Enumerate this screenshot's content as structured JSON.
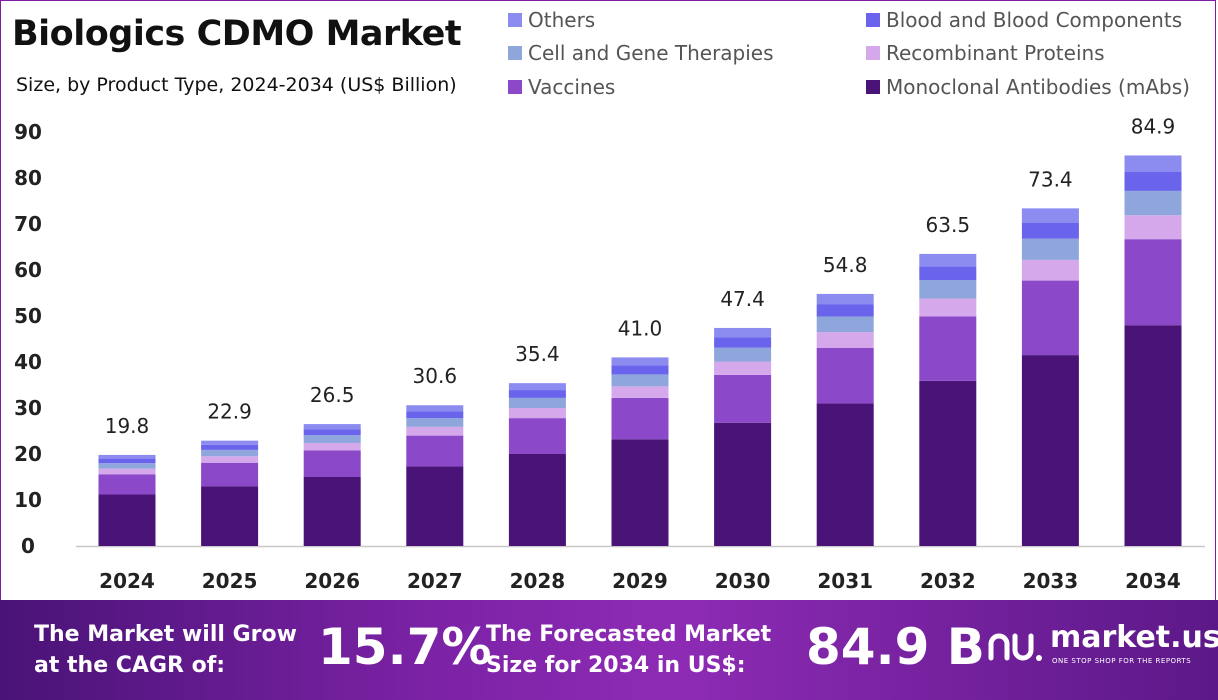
{
  "header": {
    "title": "Biologics CDMO Market",
    "subtitle": "Size, by Product Type, 2024-2034 (US$ Billion)"
  },
  "legend": [
    {
      "label": "Others",
      "color": "#8b8bf0"
    },
    {
      "label": "Blood and Blood Components",
      "color": "#6a63ec"
    },
    {
      "label": "Cell and Gene Therapies",
      "color": "#8fa6dc"
    },
    {
      "label": "Recombinant Proteins",
      "color": "#d5a8ec"
    },
    {
      "label": "Vaccines",
      "color": "#8b48c8"
    },
    {
      "label": "Monoclonal Antibodies (mAbs)",
      "color": "#4a1377"
    }
  ],
  "chart_data": {
    "type": "bar",
    "stacked": true,
    "title": "Biologics CDMO Market",
    "subtitle": "Size, by Product Type, 2024-2034 (US$ Billion)",
    "categories": [
      "2024",
      "2025",
      "2026",
      "2027",
      "2028",
      "2029",
      "2030",
      "2031",
      "2032",
      "2033",
      "2034"
    ],
    "totals": [
      "19.8",
      "22.9",
      "26.5",
      "30.6",
      "35.4",
      "41.0",
      "47.4",
      "54.8",
      "63.5",
      "73.4",
      "84.9"
    ],
    "ylim": [
      0,
      90
    ],
    "yticks": [
      0,
      10,
      20,
      30,
      40,
      50,
      60,
      70,
      80,
      90
    ],
    "grid": false,
    "legend_position": "top-right",
    "series": [
      {
        "name": "Monoclonal Antibodies (mAbs)",
        "color": "#4a1377",
        "values": [
          11.2,
          13.0,
          15.0,
          17.3,
          20.0,
          23.2,
          26.8,
          31.0,
          35.9,
          41.5,
          48.0
        ]
      },
      {
        "name": "Vaccines",
        "color": "#8b48c8",
        "values": [
          4.4,
          5.1,
          5.8,
          6.7,
          7.8,
          9.0,
          10.4,
          12.1,
          14.0,
          16.2,
          18.7
        ]
      },
      {
        "name": "Recombinant Proteins",
        "color": "#d5a8ec",
        "values": [
          1.2,
          1.4,
          1.6,
          1.9,
          2.2,
          2.5,
          2.9,
          3.4,
          3.9,
          4.5,
          5.2
        ]
      },
      {
        "name": "Cell and Gene Therapies",
        "color": "#8fa6dc",
        "values": [
          1.2,
          1.4,
          1.7,
          1.9,
          2.2,
          2.6,
          3.0,
          3.4,
          4.0,
          4.6,
          5.3
        ]
      },
      {
        "name": "Blood and Blood Components",
        "color": "#6a63ec",
        "values": [
          1.0,
          1.1,
          1.3,
          1.5,
          1.7,
          2.0,
          2.3,
          2.6,
          3.0,
          3.5,
          4.1
        ]
      },
      {
        "name": "Others",
        "color": "#8b8bf0",
        "values": [
          0.8,
          0.9,
          1.1,
          1.3,
          1.5,
          1.7,
          2.0,
          2.3,
          2.7,
          3.1,
          3.6
        ]
      }
    ],
    "axis_color": "#c8c8c8",
    "label_color": "#222222"
  },
  "footer": {
    "cagr_label_line1": "The Market will Grow",
    "cagr_label_line2": "at the CAGR of:",
    "cagr_value": "15.7%",
    "forecast_label_line1": "The Forecasted Market",
    "forecast_label_line2": "Size for 2034 in US$:",
    "forecast_value": "84.9 B",
    "brand_name": "market.us",
    "brand_tagline": "ONE STOP SHOP FOR THE REPORTS",
    "background_color": "#7b22a5"
  }
}
